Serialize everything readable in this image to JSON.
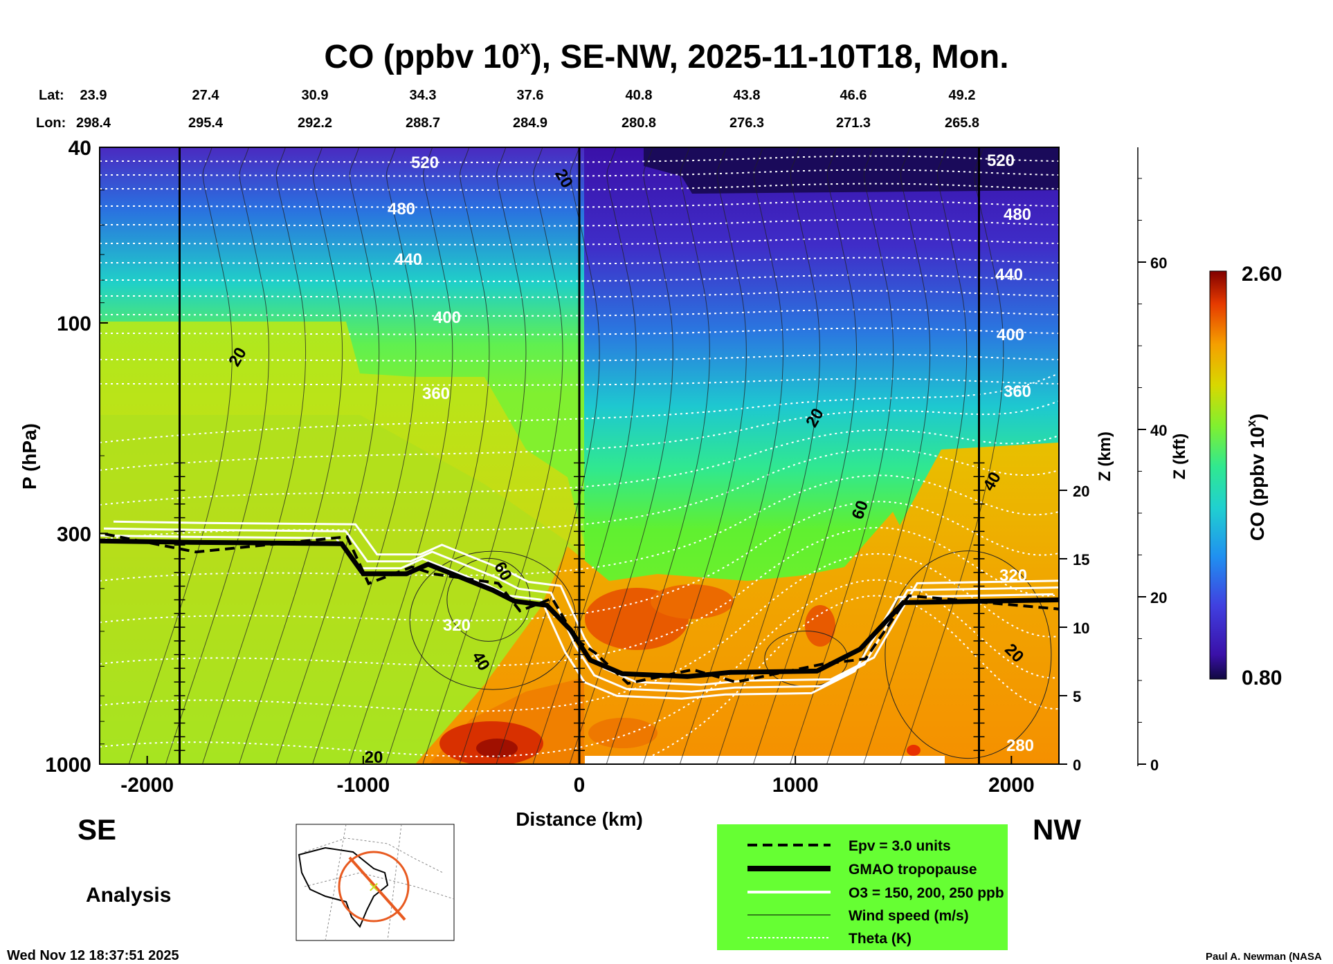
{
  "chart_data": {
    "type": "heatmap",
    "title_main": "CO (ppbv 10",
    "title_exp": "x",
    "title_rest": "), SE-NW, 2025-11-10T18, Mon.",
    "lat_label": "Lat:",
    "lon_label": "Lon:",
    "lats": [
      "23.9",
      "27.4",
      "30.9",
      "34.3",
      "37.6",
      "40.8",
      "43.8",
      "46.6",
      "49.2"
    ],
    "lons": [
      "298.4",
      "295.4",
      "292.2",
      "288.7",
      "284.9",
      "280.8",
      "276.3",
      "271.3",
      "265.8"
    ],
    "xlabel": "Distance (km)",
    "xlim": [
      -2220,
      2220
    ],
    "x_ticks": [
      "-2000",
      "-1000",
      "0",
      "1000",
      "2000"
    ],
    "ylabel_left": "P (hPa)",
    "ylim_hpa": [
      1000,
      40
    ],
    "y_ticks_left": [
      "40",
      "100",
      "300",
      "1000"
    ],
    "ylabel_z_km": "Z (km)",
    "z_km_ticks": [
      "0",
      "5",
      "10",
      "15",
      "20"
    ],
    "ylabel_z_kft": "Z (kft)",
    "z_kft_ticks": [
      "0",
      "20",
      "40",
      "60"
    ],
    "colorbar_label_main": "CO (ppbv 10",
    "colorbar_label_exp": "x",
    "colorbar_label_end": ")",
    "colorbar_max": "2.60",
    "colorbar_min": "0.80",
    "theta_labels_left": [
      "520",
      "480",
      "440",
      "400",
      "360",
      "320"
    ],
    "theta_labels_right": [
      "520",
      "480",
      "440",
      "400",
      "360",
      "320",
      "280"
    ],
    "wind_labels": [
      "20",
      "20",
      "20",
      "60",
      "40",
      "20",
      "60",
      "40",
      "20"
    ],
    "tropopause_km": [
      [
        -2220,
        16.3
      ],
      [
        -1800,
        16.2
      ],
      [
        -1100,
        16.1
      ],
      [
        -1000,
        13.9
      ],
      [
        -800,
        13.9
      ],
      [
        -700,
        14.6
      ],
      [
        -400,
        12.7
      ],
      [
        -300,
        11.9
      ],
      [
        -150,
        11.6
      ],
      [
        -40,
        9.8
      ],
      [
        50,
        7.6
      ],
      [
        200,
        6.6
      ],
      [
        500,
        6.4
      ],
      [
        700,
        6.7
      ],
      [
        1100,
        6.8
      ],
      [
        1300,
        8.4
      ],
      [
        1500,
        11.8
      ],
      [
        2220,
        12.0
      ]
    ],
    "sublabel_left": "SE",
    "sublabel_right": "NW",
    "analysis": "Analysis",
    "legend": [
      "Epv = 3.0 units",
      "GMAO tropopause",
      "O3 = 150, 200, 250 ppb",
      "Wind speed (m/s)",
      "Theta (K)"
    ],
    "timestamp": "Wed Nov 12 18:37:51 2025",
    "credit": "Paul A. Newman (NASA"
  },
  "colors": {
    "upper_purple": "#4b1bb8",
    "mid_cyan": "#1fd7c8",
    "green": "#7ef000",
    "yellow": "#d8d800",
    "orange": "#f5a000",
    "red": "#e63a00",
    "legend_bg": "#66ff33"
  }
}
